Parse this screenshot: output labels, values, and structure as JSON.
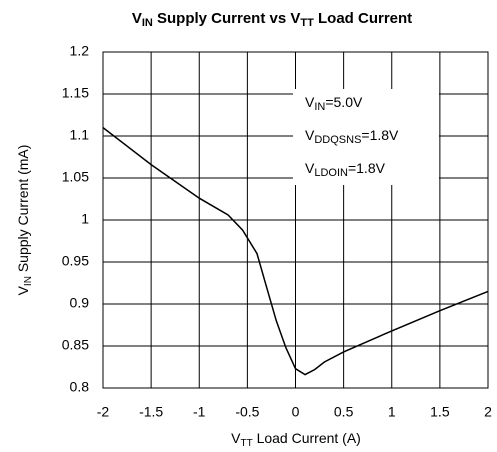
{
  "chart_data": {
    "type": "line",
    "title": [
      "V",
      "IN",
      " Supply Current vs V",
      "TT",
      " Load Current"
    ],
    "x_label": [
      "V",
      "TT",
      " Load Current (A)"
    ],
    "y_label": [
      "V",
      "IN",
      " Supply Current (mA)"
    ],
    "annotations": [
      [
        "V",
        "IN",
        "=5.0V"
      ],
      [
        "V",
        "DDQSNS",
        "=1.8V"
      ],
      [
        "V",
        "LDOIN",
        "=1.8V"
      ]
    ],
    "x": [
      -2,
      -1.5,
      -1,
      -0.7,
      -0.55,
      -0.4,
      -0.3,
      -0.2,
      -0.1,
      0,
      0.1,
      0.2,
      0.3,
      0.5,
      1,
      1.5,
      2
    ],
    "series": [
      {
        "color": "#000000",
        "values": [
          1.11,
          1.066,
          1.026,
          1.006,
          0.988,
          0.96,
          0.92,
          0.88,
          0.848,
          0.823,
          0.816,
          0.822,
          0.831,
          0.843,
          0.868,
          0.892,
          0.915
        ]
      }
    ],
    "xlim": [
      -2,
      2
    ],
    "xticks": [
      -2,
      -1.5,
      -1,
      -0.5,
      0,
      0.5,
      1,
      1.5,
      2
    ],
    "ylim": [
      0.8,
      1.2
    ],
    "yticks": [
      0.8,
      0.85,
      0.9,
      0.95,
      1,
      1.05,
      1.1,
      1.15,
      1.2
    ],
    "grid": true
  }
}
